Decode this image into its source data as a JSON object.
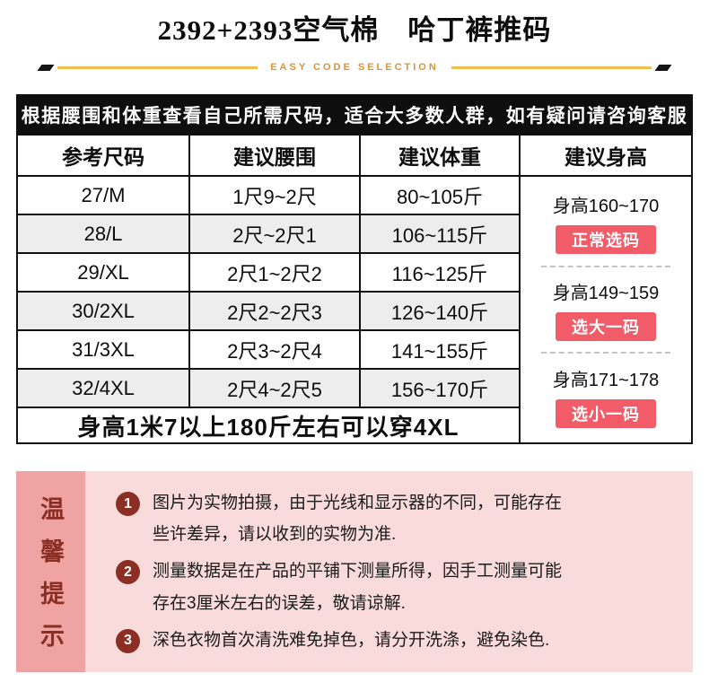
{
  "page": {
    "title": "2392+2393空气棉　哈丁裤推码",
    "subtitle": "EASY CODE SELECTION"
  },
  "colors": {
    "badge_pink": "#f25c68",
    "dark_red": "#8b2e23",
    "strip_pink": "#f0a3a3",
    "panel_pink": "#fadbdb",
    "gold": "#f1bf4b",
    "orange_text": "#d9943a",
    "bar_black": "#0e0e0e",
    "row_gray": "#ededed"
  },
  "notice_bar": {
    "text": "根据腰围和体重查看自己所需尺码，适合大多数人群，如有疑问请咨询客服"
  },
  "size_table": {
    "headers": [
      "参考尺码",
      "建议腰围",
      "建议体重",
      "建议身高"
    ],
    "rows": [
      {
        "size": "27/M",
        "waist": "1尺9~2尺",
        "weight": "80~105斤"
      },
      {
        "size": "28/L",
        "waist": "2尺~2尺1",
        "weight": "106~115斤"
      },
      {
        "size": "29/XL",
        "waist": "2尺1~2尺2",
        "weight": "116~125斤"
      },
      {
        "size": "30/2XL",
        "waist": "2尺2~2尺3",
        "weight": "126~140斤"
      },
      {
        "size": "31/3XL",
        "waist": "2尺3~2尺4",
        "weight": "141~155斤"
      },
      {
        "size": "32/4XL",
        "waist": "2尺4~2尺5",
        "weight": "156~170斤"
      }
    ],
    "footer_note": "身高1米7以上180斤左右可以穿4XL",
    "height_groups": [
      {
        "height": "身高160~170",
        "badge": "正常选码"
      },
      {
        "height": "身高149~159",
        "badge": "选大一码"
      },
      {
        "height": "身高171~178",
        "badge": "选小一码"
      }
    ]
  },
  "tips": {
    "vertical_title": "温馨提示",
    "items": [
      {
        "num": "1",
        "text": "图片为实物拍摄，由于光线和显示器的不同，可能存在些许差异，请以收到的实物为准."
      },
      {
        "num": "2",
        "text": "测量数据是在产品的平铺下测量所得，因手工测量可能存在3厘米左右的误差，敬请谅解."
      },
      {
        "num": "3",
        "text": "深色衣物首次清洗难免掉色，请分开洗涤，避免染色."
      }
    ]
  }
}
